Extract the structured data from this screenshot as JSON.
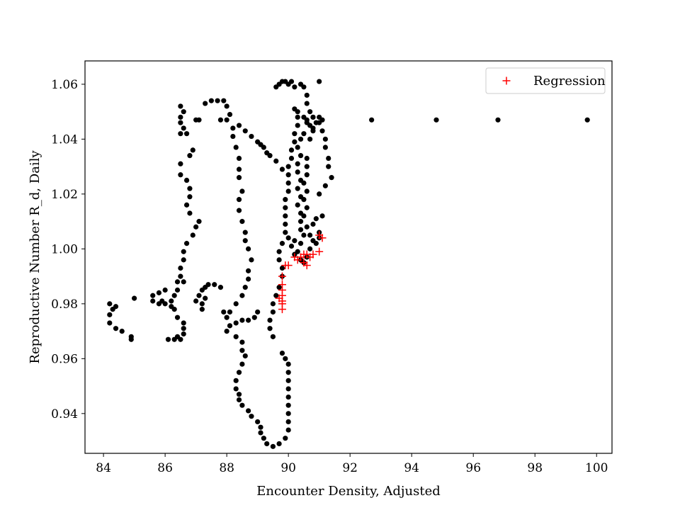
{
  "chart_data": {
    "type": "scatter",
    "title": "",
    "xlabel": "Encounter Density, Adjusted",
    "ylabel": "Reproductive Number R_d, Daily",
    "xlim": [
      83.4,
      100.5
    ],
    "ylim": [
      0.9255,
      1.0685
    ],
    "xticks": [
      84,
      86,
      88,
      90,
      92,
      94,
      96,
      98,
      100
    ],
    "yticks": [
      0.94,
      0.96,
      0.98,
      1.0,
      1.02,
      1.04,
      1.06
    ],
    "ytick_labels": [
      "0.94",
      "0.96",
      "0.98",
      "1.00",
      "1.02",
      "1.04",
      "1.06"
    ],
    "grid": false,
    "legend_position": "top-right",
    "legend": [
      "Regression"
    ],
    "series": [
      {
        "marker": "dot",
        "color": "#000000",
        "points": [
          [
            86.5,
            1.052
          ],
          [
            86.6,
            1.05
          ],
          [
            86.5,
            1.048
          ],
          [
            86.5,
            1.046
          ],
          [
            86.6,
            1.044
          ],
          [
            86.5,
            1.042
          ],
          [
            86.9,
            1.036
          ],
          [
            86.8,
            1.034
          ],
          [
            86.5,
            1.031
          ],
          [
            86.5,
            1.027
          ],
          [
            86.7,
            1.025
          ],
          [
            86.8,
            1.022
          ],
          [
            86.8,
            1.019
          ],
          [
            86.7,
            1.016
          ],
          [
            86.8,
            1.013
          ],
          [
            87.0,
            1.008
          ],
          [
            87.1,
            1.01
          ],
          [
            86.9,
            1.005
          ],
          [
            86.7,
            1.002
          ],
          [
            86.6,
            0.999
          ],
          [
            86.6,
            0.996
          ],
          [
            86.5,
            0.993
          ],
          [
            86.5,
            0.99
          ],
          [
            86.4,
            0.988
          ],
          [
            86.6,
            0.988
          ],
          [
            86.4,
            0.985
          ],
          [
            86.3,
            0.983
          ],
          [
            86.2,
            0.981
          ],
          [
            86.2,
            0.979
          ],
          [
            86.0,
            0.98
          ],
          [
            85.9,
            0.981
          ],
          [
            85.8,
            0.984
          ],
          [
            86.0,
            0.985
          ],
          [
            85.6,
            0.983
          ],
          [
            85.6,
            0.981
          ],
          [
            85.8,
            0.98
          ],
          [
            86.3,
            0.978
          ],
          [
            86.4,
            0.975
          ],
          [
            86.6,
            0.973
          ],
          [
            86.6,
            0.971
          ],
          [
            86.6,
            0.969
          ],
          [
            86.5,
            0.967
          ],
          [
            86.3,
            0.967
          ],
          [
            86.1,
            0.967
          ],
          [
            86.4,
            0.968
          ],
          [
            84.2,
            0.98
          ],
          [
            84.3,
            0.978
          ],
          [
            84.4,
            0.979
          ],
          [
            84.2,
            0.976
          ],
          [
            84.2,
            0.973
          ],
          [
            84.4,
            0.971
          ],
          [
            84.6,
            0.97
          ],
          [
            84.9,
            0.968
          ],
          [
            84.9,
            0.967
          ],
          [
            85.0,
            0.982
          ],
          [
            87.2,
            0.98
          ],
          [
            87.0,
            0.981
          ],
          [
            87.1,
            0.983
          ],
          [
            87.2,
            0.985
          ],
          [
            87.3,
            0.986
          ],
          [
            87.4,
            0.987
          ],
          [
            87.6,
            0.987
          ],
          [
            87.8,
            0.986
          ],
          [
            87.9,
            0.977
          ],
          [
            87.2,
            0.978
          ],
          [
            87.3,
            0.982
          ],
          [
            87.3,
            1.053
          ],
          [
            87.5,
            1.054
          ],
          [
            87.7,
            1.054
          ],
          [
            87.9,
            1.054
          ],
          [
            88.0,
            1.052
          ],
          [
            88.1,
            1.049
          ],
          [
            88.0,
            1.047
          ],
          [
            87.8,
            1.047
          ],
          [
            87.1,
            1.047
          ],
          [
            87.0,
            1.047
          ],
          [
            86.7,
            1.042
          ],
          [
            88.2,
            1.044
          ],
          [
            88.2,
            1.041
          ],
          [
            88.3,
            1.037
          ],
          [
            88.4,
            1.033
          ],
          [
            88.4,
            1.029
          ],
          [
            88.4,
            1.026
          ],
          [
            88.5,
            1.021
          ],
          [
            88.4,
            1.018
          ],
          [
            88.4,
            1.014
          ],
          [
            88.5,
            1.01
          ],
          [
            88.6,
            1.006
          ],
          [
            88.6,
            1.003
          ],
          [
            88.7,
            1.0
          ],
          [
            88.8,
            0.996
          ],
          [
            88.7,
            0.992
          ],
          [
            88.7,
            0.989
          ],
          [
            88.6,
            0.986
          ],
          [
            88.5,
            0.983
          ],
          [
            88.3,
            0.98
          ],
          [
            88.1,
            0.977
          ],
          [
            88.0,
            0.975
          ],
          [
            88.1,
            0.972
          ],
          [
            88.0,
            0.97
          ],
          [
            88.3,
            0.973
          ],
          [
            88.5,
            0.974
          ],
          [
            88.7,
            0.974
          ],
          [
            88.9,
            0.975
          ],
          [
            89.0,
            0.977
          ],
          [
            88.4,
            1.045
          ],
          [
            88.6,
            1.043
          ],
          [
            88.8,
            1.041
          ],
          [
            89.0,
            1.039
          ],
          [
            89.2,
            1.037
          ],
          [
            89.4,
            1.034
          ],
          [
            89.6,
            1.032
          ],
          [
            89.8,
            1.029
          ],
          [
            89.3,
            1.035
          ],
          [
            89.1,
            1.038
          ],
          [
            88.3,
            0.968
          ],
          [
            88.5,
            0.966
          ],
          [
            88.5,
            0.963
          ],
          [
            88.6,
            0.961
          ],
          [
            88.5,
            0.958
          ],
          [
            88.4,
            0.955
          ],
          [
            88.3,
            0.952
          ],
          [
            88.3,
            0.949
          ],
          [
            88.4,
            0.947
          ],
          [
            88.4,
            0.945
          ],
          [
            88.5,
            0.943
          ],
          [
            88.7,
            0.941
          ],
          [
            88.8,
            0.939
          ],
          [
            89.0,
            0.937
          ],
          [
            89.1,
            0.935
          ],
          [
            89.1,
            0.933
          ],
          [
            89.2,
            0.931
          ],
          [
            89.3,
            0.929
          ],
          [
            89.5,
            0.928
          ],
          [
            89.7,
            0.929
          ],
          [
            89.9,
            0.931
          ],
          [
            90.0,
            0.934
          ],
          [
            90.0,
            0.937
          ],
          [
            90.0,
            0.94
          ],
          [
            90.0,
            0.943
          ],
          [
            90.0,
            0.946
          ],
          [
            90.0,
            0.949
          ],
          [
            90.0,
            0.952
          ],
          [
            90.0,
            0.955
          ],
          [
            90.0,
            0.958
          ],
          [
            89.9,
            0.96
          ],
          [
            89.8,
            0.962
          ],
          [
            89.5,
            0.968
          ],
          [
            89.4,
            0.971
          ],
          [
            89.4,
            0.974
          ],
          [
            89.5,
            0.977
          ],
          [
            89.5,
            0.98
          ],
          [
            89.6,
            0.983
          ],
          [
            89.7,
            0.986
          ],
          [
            89.8,
            0.99
          ],
          [
            89.8,
            0.993
          ],
          [
            89.7,
            0.996
          ],
          [
            89.7,
            0.999
          ],
          [
            89.8,
            1.002
          ],
          [
            89.9,
            1.006
          ],
          [
            89.9,
            1.009
          ],
          [
            89.9,
            1.012
          ],
          [
            89.9,
            1.015
          ],
          [
            89.9,
            1.018
          ],
          [
            90.0,
            1.021
          ],
          [
            90.0,
            1.024
          ],
          [
            90.0,
            1.027
          ],
          [
            90.0,
            1.03
          ],
          [
            90.1,
            1.033
          ],
          [
            90.1,
            1.036
          ],
          [
            90.2,
            1.039
          ],
          [
            90.2,
            1.042
          ],
          [
            90.3,
            1.045
          ],
          [
            90.3,
            1.048
          ],
          [
            90.2,
            1.051
          ],
          [
            89.6,
            1.059
          ],
          [
            89.7,
            1.06
          ],
          [
            89.8,
            1.061
          ],
          [
            89.9,
            1.061
          ],
          [
            90.0,
            1.06
          ],
          [
            90.2,
            1.059
          ],
          [
            90.4,
            1.06
          ],
          [
            90.5,
            1.059
          ],
          [
            90.6,
            1.056
          ],
          [
            90.6,
            1.053
          ],
          [
            90.7,
            1.05
          ],
          [
            90.8,
            1.048
          ],
          [
            91.0,
            1.046
          ],
          [
            91.1,
            1.043
          ],
          [
            91.2,
            1.04
          ],
          [
            91.2,
            1.037
          ],
          [
            91.3,
            1.033
          ],
          [
            91.3,
            1.03
          ],
          [
            91.4,
            1.026
          ],
          [
            91.2,
            1.023
          ],
          [
            91.0,
            1.02
          ],
          [
            91.0,
            1.061
          ],
          [
            90.1,
            1.061
          ],
          [
            90.3,
            1.05
          ],
          [
            90.5,
            1.048
          ],
          [
            90.6,
            1.046
          ],
          [
            90.7,
            1.045
          ],
          [
            90.8,
            1.044
          ],
          [
            90.5,
            1.042
          ],
          [
            90.4,
            1.04
          ],
          [
            90.3,
            1.037
          ],
          [
            90.4,
            1.034
          ],
          [
            90.3,
            1.031
          ],
          [
            90.3,
            1.028
          ],
          [
            90.4,
            1.025
          ],
          [
            90.3,
            1.022
          ],
          [
            90.4,
            1.019
          ],
          [
            90.3,
            1.016
          ],
          [
            90.4,
            1.013
          ],
          [
            90.4,
            1.01
          ],
          [
            90.4,
            1.007
          ],
          [
            90.5,
            1.005
          ],
          [
            90.4,
            1.002
          ],
          [
            90.3,
            0.999
          ],
          [
            90.2,
            0.998
          ],
          [
            90.1,
            1.001
          ],
          [
            90.2,
            1.003
          ],
          [
            90.0,
            1.004
          ],
          [
            90.6,
            1.021
          ],
          [
            90.5,
            1.024
          ],
          [
            90.6,
            1.027
          ],
          [
            90.6,
            1.03
          ],
          [
            90.6,
            1.033
          ],
          [
            90.5,
            1.012
          ],
          [
            90.6,
            1.008
          ],
          [
            90.7,
            1.005
          ],
          [
            90.8,
            1.003
          ],
          [
            90.9,
            1.002
          ],
          [
            91.0,
            1.004
          ],
          [
            91.0,
            1.006
          ],
          [
            90.8,
            1.009
          ],
          [
            90.9,
            1.011
          ],
          [
            91.1,
            1.012
          ],
          [
            90.6,
            1.015
          ],
          [
            90.5,
            1.018
          ],
          [
            90.7,
            1.0
          ],
          [
            90.6,
            0.997
          ],
          [
            90.5,
            0.995
          ],
          [
            90.4,
            0.996
          ],
          [
            90.6,
            1.047
          ],
          [
            90.8,
            1.048
          ],
          [
            91.0,
            1.048
          ],
          [
            91.1,
            1.047
          ],
          [
            90.9,
            1.046
          ],
          [
            90.7,
            1.04
          ],
          [
            90.8,
            1.043
          ],
          [
            92.7,
            1.047
          ],
          [
            94.8,
            1.047
          ],
          [
            96.8,
            1.047
          ],
          [
            99.7,
            1.047
          ]
        ]
      },
      {
        "name": "Regression",
        "marker": "plus",
        "color": "#ff0000",
        "points": [
          [
            89.8,
            0.978
          ],
          [
            89.8,
            0.98
          ],
          [
            89.8,
            0.981
          ],
          [
            89.8,
            0.983
          ],
          [
            89.8,
            0.985
          ],
          [
            89.8,
            0.987
          ],
          [
            89.8,
            0.99
          ],
          [
            89.9,
            0.994
          ],
          [
            90.0,
            0.994
          ],
          [
            90.3,
            0.996
          ],
          [
            90.4,
            0.997
          ],
          [
            90.5,
            0.995
          ],
          [
            90.6,
            0.994
          ],
          [
            90.5,
            0.998
          ],
          [
            90.7,
            0.997
          ],
          [
            90.8,
            0.998
          ],
          [
            91.0,
            0.999
          ],
          [
            91.1,
            1.004
          ],
          [
            91.0,
            1.005
          ],
          [
            89.7,
            0.982
          ],
          [
            90.6,
            0.998
          ],
          [
            90.2,
            0.997
          ]
        ]
      }
    ]
  }
}
